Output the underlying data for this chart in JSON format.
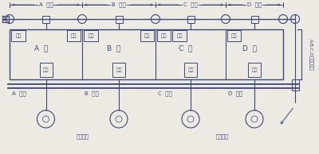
{
  "bg_color": "#ede9e3",
  "line_color": "#3a4878",
  "fig_width": 4.0,
  "fig_height": 1.94,
  "dpi": 100,
  "houses": [
    "A",
    "B",
    "C",
    "D"
  ],
  "house_labels": [
    "A  宅",
    "B  宅",
    "C  宅",
    "D  宅"
  ],
  "furo_label": "風呂",
  "benjo_label": "便所",
  "daidokoro_label": "台所",
  "futan": "負担",
  "kokyo_masu": "公共ます",
  "right_label": "A,B,C,Dの共有負担"
}
